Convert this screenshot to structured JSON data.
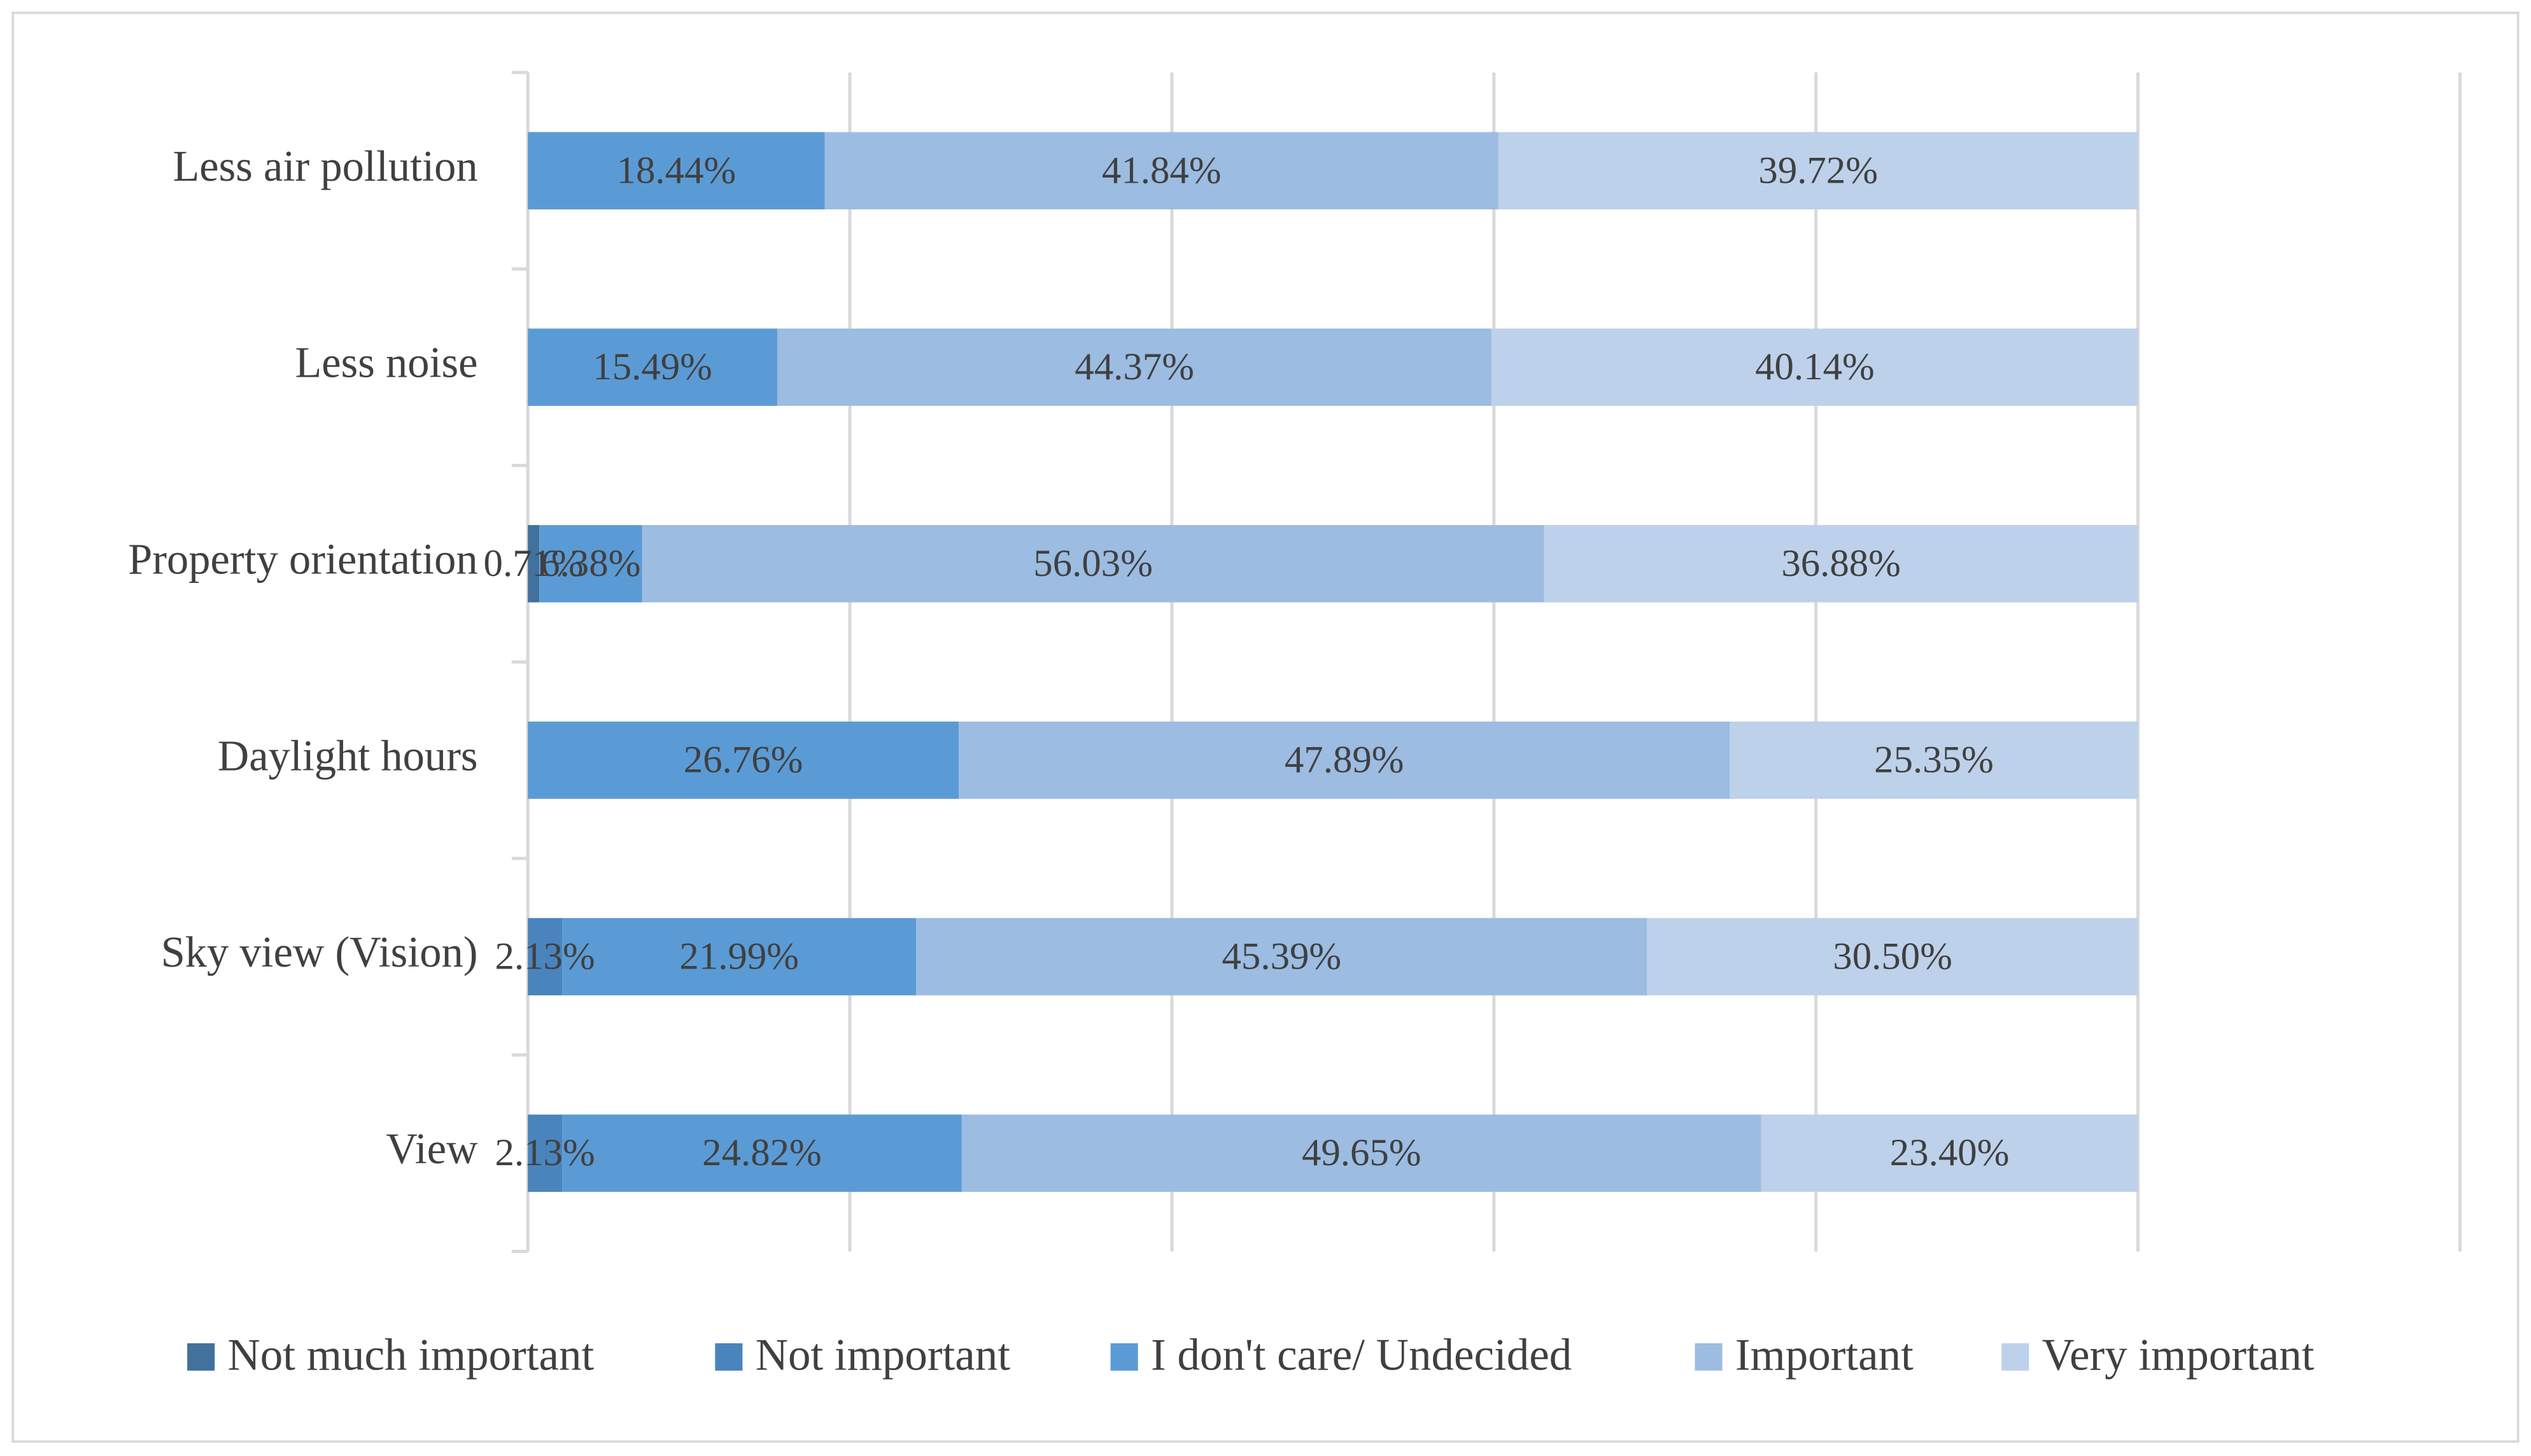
{
  "chart_data": {
    "type": "stacked-bar-horizontal",
    "categories": [
      "Less air pollution",
      "Less noise",
      "Property orientation",
      "Daylight hours",
      "Sky view (Vision)",
      "View"
    ],
    "series": [
      {
        "name": "Not much important",
        "color": "#41719c",
        "values": [
          null,
          null,
          0.71,
          null,
          null,
          null
        ],
        "value_labels": [
          null,
          null,
          "0.71%",
          null,
          null,
          null
        ]
      },
      {
        "name": "Not important",
        "color": "#4a84bd",
        "values": [
          null,
          null,
          null,
          null,
          2.13,
          2.13
        ],
        "value_labels": [
          null,
          null,
          null,
          null,
          "2.13%",
          "2.13%"
        ]
      },
      {
        "name": "I don't care/ Undecided",
        "color": "#5b9bd5",
        "values": [
          18.44,
          15.49,
          6.38,
          26.76,
          21.99,
          24.82
        ],
        "value_labels": [
          "18.44%",
          "15.49%",
          "6.38%",
          "26.76%",
          "21.99%",
          "24.82%"
        ]
      },
      {
        "name": "Important",
        "color": "#9cbce2",
        "values": [
          41.84,
          44.37,
          56.03,
          47.89,
          45.39,
          49.65
        ],
        "value_labels": [
          "41.84%",
          "44.37%",
          "56.03%",
          "47.89%",
          "45.39%",
          "49.65%"
        ]
      },
      {
        "name": "Very important",
        "color": "#bdd1ea",
        "values": [
          39.72,
          40.14,
          36.88,
          25.35,
          30.5,
          23.4
        ],
        "value_labels": [
          "39.72%",
          "40.14%",
          "36.88%",
          "25.35%",
          "30.50%",
          "23.40%"
        ]
      }
    ],
    "xlim": [
      0,
      120
    ],
    "xticks": [
      0,
      20,
      40,
      60,
      80,
      100,
      120
    ],
    "grid": true
  }
}
